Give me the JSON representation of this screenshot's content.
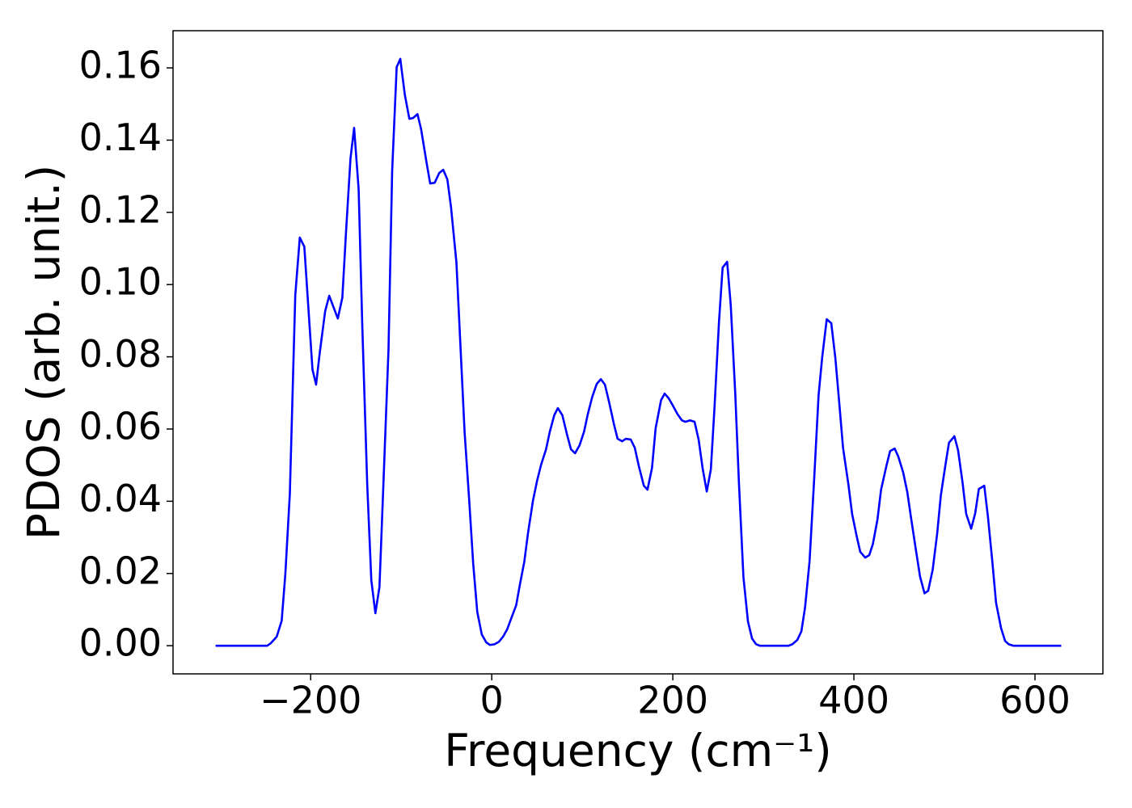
{
  "chart_data": {
    "type": "line",
    "xlabel": "Frequency (cm⁻¹)",
    "ylabel": "PDOS (arb. unit.)",
    "color": "#0000ff",
    "xlim": [
      -352,
      675
    ],
    "ylim": [
      -0.0078,
      0.1703
    ],
    "xticks": [
      {
        "value": -200,
        "label": "−200"
      },
      0,
      200,
      400,
      600
    ],
    "yticks": [
      {
        "value": 0,
        "label": "0.00"
      },
      {
        "value": 0.02,
        "label": "0.02"
      },
      {
        "value": 0.04,
        "label": "0.04"
      },
      {
        "value": 0.06,
        "label": "0.06"
      },
      {
        "value": 0.08,
        "label": "0.08"
      },
      {
        "value": 0.1,
        "label": "0.10"
      },
      {
        "value": 0.12,
        "label": "0.12"
      },
      {
        "value": 0.14,
        "label": "0.14"
      },
      {
        "value": 0.16,
        "label": "0.16"
      }
    ],
    "x": [
      -305,
      -248,
      -244,
      -237.5,
      -232,
      -228,
      -223,
      -217,
      -212,
      -207,
      -198,
      -194,
      -190,
      -184,
      -179.5,
      -170,
      -165,
      -161,
      -156,
      -152,
      -147,
      -143,
      -137.5,
      -133,
      -128.5,
      -124,
      -120,
      -114,
      -110,
      -105,
      -101,
      -96,
      -91,
      -87,
      -82,
      -78,
      -72,
      -68,
      -63,
      -58,
      -53.6,
      -49,
      -45,
      -39,
      -35,
      -30,
      -25,
      -20.5,
      -16,
      -11,
      -6,
      -2,
      3,
      8,
      12.5,
      17,
      21,
      27,
      31,
      36,
      40,
      45.5,
      50,
      54.5,
      60,
      64,
      69,
      73,
      78,
      83,
      87.5,
      92,
      97,
      102,
      106,
      111,
      116,
      120.5,
      125,
      129.5,
      135,
      139,
      144,
      148,
      153.5,
      158,
      162.5,
      168,
      172,
      177,
      181,
      187,
      191,
      195.5,
      200,
      205,
      210,
      214,
      219,
      224,
      228.5,
      233,
      237.5,
      242,
      246,
      251,
      255,
      260,
      264,
      269,
      273,
      278,
      283,
      287.5,
      292,
      296,
      328,
      332,
      337.5,
      342,
      346,
      351,
      356,
      361,
      365,
      370,
      375,
      379.5,
      384,
      388,
      394,
      398,
      403,
      407,
      412.5,
      417,
      421,
      426,
      430,
      436,
      440,
      445,
      449,
      454.5,
      459,
      463,
      468,
      473,
      478,
      482,
      487,
      492,
      496,
      501,
      505,
      511,
      515,
      520,
      524,
      529.5,
      534,
      538,
      544,
      548,
      553,
      557,
      562.5,
      567,
      571,
      576,
      629
    ],
    "values": [
      0,
      0,
      0.0007,
      0.0025,
      0.0069,
      0.0197,
      0.042,
      0.097,
      0.113,
      0.1105,
      0.0765,
      0.0723,
      0.081,
      0.0926,
      0.0969,
      0.0906,
      0.0964,
      0.1143,
      0.1349,
      0.1434,
      0.1264,
      0.0888,
      0.0445,
      0.0181,
      0.009,
      0.0163,
      0.0425,
      0.0821,
      0.1313,
      0.1602,
      0.1625,
      0.1526,
      0.1459,
      0.1461,
      0.1472,
      0.143,
      0.1338,
      0.128,
      0.1282,
      0.1309,
      0.1318,
      0.1291,
      0.1215,
      0.1061,
      0.0853,
      0.0593,
      0.0407,
      0.0228,
      0.0094,
      0.0031,
      0.0009,
      0.0002,
      0.0004,
      0.0011,
      0.0025,
      0.0045,
      0.0072,
      0.0112,
      0.0168,
      0.0233,
      0.0311,
      0.0401,
      0.0456,
      0.0501,
      0.0544,
      0.0591,
      0.0638,
      0.0658,
      0.0638,
      0.0586,
      0.0544,
      0.0533,
      0.0555,
      0.0593,
      0.064,
      0.0689,
      0.0725,
      0.0738,
      0.0723,
      0.0676,
      0.0613,
      0.0573,
      0.0566,
      0.0573,
      0.0571,
      0.0548,
      0.0497,
      0.0443,
      0.0432,
      0.0492,
      0.0602,
      0.068,
      0.0698,
      0.0685,
      0.0665,
      0.0642,
      0.0624,
      0.062,
      0.0624,
      0.062,
      0.0571,
      0.049,
      0.0427,
      0.0488,
      0.0658,
      0.0897,
      0.1047,
      0.1063,
      0.0942,
      0.0696,
      0.0452,
      0.019,
      0.0067,
      0.002,
      0.0004,
      0,
      0,
      0.0004,
      0.0016,
      0.004,
      0.0105,
      0.0233,
      0.0456,
      0.0694,
      0.0799,
      0.0904,
      0.0893,
      0.0797,
      0.0667,
      0.0548,
      0.0445,
      0.0365,
      0.0304,
      0.026,
      0.0244,
      0.0251,
      0.0282,
      0.0349,
      0.0432,
      0.0499,
      0.0539,
      0.0546,
      0.0524,
      0.0479,
      0.0425,
      0.0356,
      0.0273,
      0.0192,
      0.0145,
      0.0152,
      0.021,
      0.0311,
      0.0416,
      0.0499,
      0.0562,
      0.058,
      0.0542,
      0.0452,
      0.0365,
      0.0324,
      0.0367,
      0.0434,
      0.0443,
      0.0358,
      0.023,
      0.0119,
      0.0049,
      0.0013,
      0.0004,
      0,
      0
    ]
  }
}
